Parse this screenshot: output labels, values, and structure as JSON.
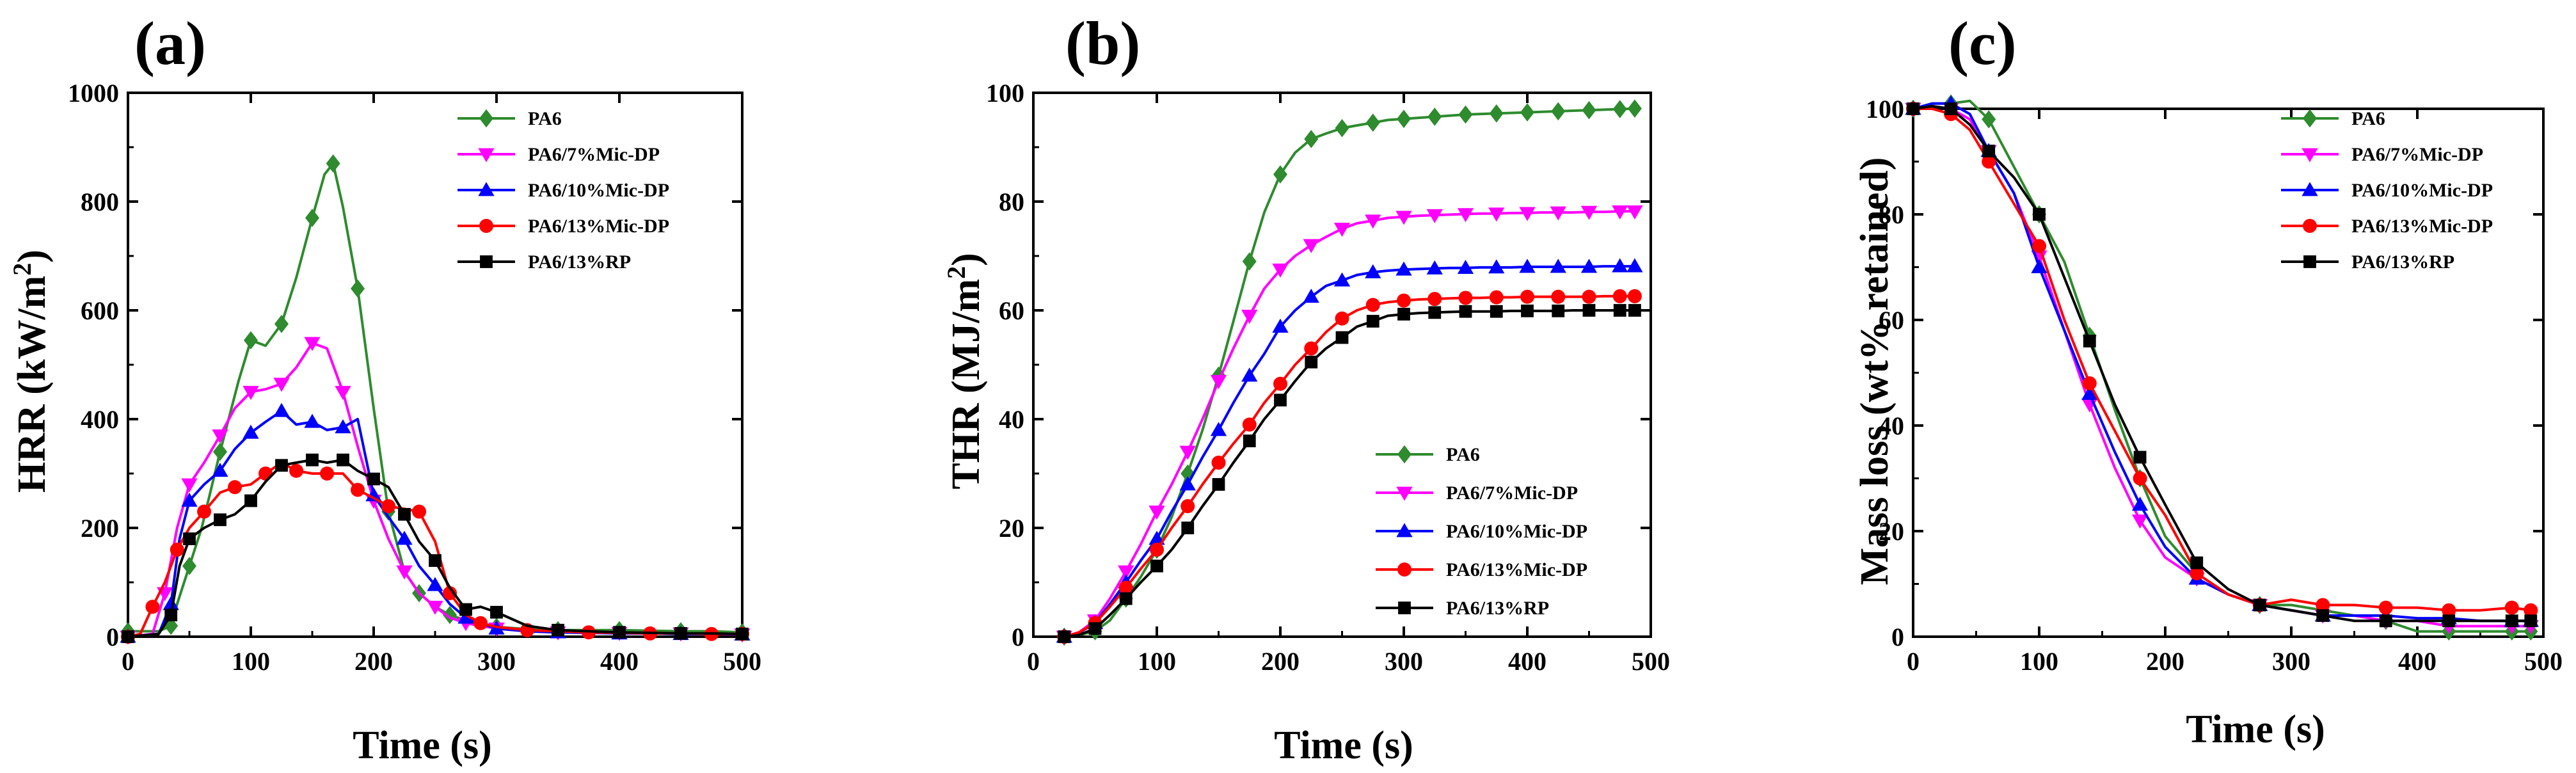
{
  "series_styles": [
    {
      "name": "PA6",
      "color": "#2e8b2e",
      "marker": "diamond"
    },
    {
      "name": "PA6/7%Mic-DP",
      "color": "#ff00ff",
      "marker": "triangle-down"
    },
    {
      "name": "PA6/10%Mic-DP",
      "color": "#0000ff",
      "marker": "triangle-up"
    },
    {
      "name": "PA6/13%Mic-DP",
      "color": "#ff0000",
      "marker": "circle"
    },
    {
      "name": "PA6/13%RP",
      "color": "#000000",
      "marker": "square"
    }
  ],
  "chart_data": [
    {
      "type": "line",
      "panel": "(a)",
      "title": "",
      "xlabel": "Time (s)",
      "ylabel": "HRR (kW/m2)",
      "ylabel_main": "HRR (kW/m",
      "ylabel_sup": "2",
      "ylabel_tail": ")",
      "xlim": [
        0,
        500
      ],
      "ylim": [
        0,
        1000
      ],
      "xticks": [
        0,
        100,
        200,
        300,
        400,
        500
      ],
      "yticks": [
        0,
        200,
        400,
        600,
        800,
        1000
      ],
      "legend": "top-right",
      "series": [
        {
          "name": "PA6",
          "x": [
            0,
            25,
            35,
            40,
            50,
            60,
            75,
            90,
            100,
            112,
            125,
            137,
            150,
            160,
            167,
            175,
            187,
            200,
            212,
            225,
            237,
            250,
            262,
            275,
            300,
            325,
            350,
            375,
            400,
            425,
            450,
            475,
            500
          ],
          "y": [
            10,
            10,
            20,
            60,
            130,
            200,
            340,
            470,
            545,
            535,
            575,
            660,
            770,
            850,
            870,
            790,
            640,
            420,
            230,
            120,
            80,
            55,
            40,
            30,
            18,
            14,
            12,
            12,
            12,
            11,
            10,
            10,
            8
          ]
        },
        {
          "name": "PA6/7%Mic-DP",
          "x": [
            0,
            20,
            30,
            40,
            50,
            62,
            75,
            87,
            100,
            112,
            125,
            137,
            150,
            162,
            175,
            187,
            200,
            212,
            225,
            237,
            250,
            262,
            275,
            287,
            300,
            325,
            350,
            375,
            400,
            425,
            450,
            475,
            500
          ],
          "y": [
            0,
            5,
            80,
            200,
            280,
            320,
            370,
            420,
            450,
            455,
            465,
            495,
            540,
            530,
            450,
            350,
            250,
            180,
            120,
            80,
            55,
            35,
            25,
            20,
            15,
            10,
            8,
            8,
            7,
            6,
            6,
            5,
            4
          ]
        },
        {
          "name": "PA6/10%Mic-DP",
          "x": [
            0,
            25,
            35,
            42,
            50,
            62,
            75,
            87,
            100,
            112,
            125,
            137,
            150,
            162,
            175,
            187,
            200,
            212,
            225,
            237,
            250,
            262,
            275,
            287,
            300,
            325,
            350,
            375,
            400,
            425,
            450,
            475,
            500
          ],
          "y": [
            0,
            5,
            60,
            180,
            250,
            280,
            305,
            345,
            375,
            395,
            415,
            390,
            395,
            380,
            385,
            400,
            260,
            220,
            180,
            130,
            95,
            60,
            35,
            25,
            15,
            10,
            8,
            7,
            6,
            6,
            5,
            5,
            4
          ]
        },
        {
          "name": "PA6/13%Mic-DP",
          "x": [
            0,
            10,
            20,
            30,
            40,
            50,
            62,
            75,
            87,
            100,
            112,
            125,
            137,
            150,
            162,
            175,
            187,
            200,
            212,
            225,
            237,
            250,
            262,
            275,
            287,
            300,
            325,
            350,
            375,
            400,
            425,
            450,
            475,
            500
          ],
          "y": [
            0,
            5,
            55,
            100,
            160,
            200,
            230,
            265,
            275,
            280,
            300,
            320,
            305,
            300,
            300,
            300,
            270,
            255,
            240,
            235,
            230,
            175,
            80,
            40,
            25,
            18,
            12,
            10,
            8,
            7,
            6,
            6,
            5,
            5
          ]
        },
        {
          "name": "PA6/13%RP",
          "x": [
            0,
            25,
            35,
            42,
            50,
            62,
            75,
            87,
            100,
            112,
            125,
            137,
            150,
            162,
            175,
            187,
            200,
            212,
            225,
            237,
            250,
            262,
            275,
            287,
            300,
            325,
            350,
            375,
            400,
            425,
            450,
            475,
            500
          ],
          "y": [
            0,
            5,
            40,
            130,
            180,
            200,
            215,
            225,
            250,
            285,
            315,
            320,
            325,
            320,
            325,
            305,
            290,
            275,
            225,
            175,
            140,
            90,
            50,
            55,
            45,
            20,
            12,
            10,
            8,
            7,
            6,
            6,
            5
          ]
        }
      ]
    },
    {
      "type": "line",
      "panel": "(b)",
      "title": "",
      "xlabel": "Time (s)",
      "ylabel": "THR (MJ/m2)",
      "ylabel_main": "THR (MJ/m",
      "ylabel_sup": "2",
      "ylabel_tail": ")",
      "xlim": [
        0,
        500
      ],
      "ylim": [
        0,
        100
      ],
      "xticks": [
        0,
        100,
        200,
        300,
        400,
        500
      ],
      "yticks": [
        0,
        20,
        40,
        60,
        80,
        100
      ],
      "legend": "bottom-right",
      "series": [
        {
          "name": "PA6",
          "x": [
            25,
            37,
            50,
            62,
            75,
            87,
            100,
            112,
            125,
            137,
            150,
            162,
            175,
            187,
            200,
            212,
            225,
            237,
            250,
            262,
            275,
            287,
            300,
            312,
            325,
            337,
            350,
            362,
            375,
            387,
            400,
            412,
            425,
            437,
            450,
            462,
            475,
            487
          ],
          "y": [
            0,
            0.3,
            1,
            3,
            7,
            11,
            16,
            22,
            30,
            38,
            48,
            58,
            69,
            78,
            85,
            89,
            91.5,
            92.5,
            93.5,
            94,
            94.5,
            95,
            95.2,
            95.4,
            95.6,
            95.8,
            96,
            96.1,
            96.2,
            96.3,
            96.4,
            96.5,
            96.6,
            96.7,
            96.8,
            96.9,
            97,
            97.1
          ]
        },
        {
          "name": "PA6/7%Mic-DP",
          "x": [
            25,
            37,
            50,
            62,
            75,
            87,
            100,
            112,
            125,
            137,
            150,
            162,
            175,
            187,
            200,
            212,
            225,
            237,
            250,
            262,
            275,
            287,
            300,
            312,
            325,
            337,
            350,
            362,
            375,
            387,
            400,
            412,
            425,
            437,
            450,
            462,
            475,
            487
          ],
          "y": [
            0,
            0.8,
            3,
            7,
            12,
            17,
            23,
            28,
            34,
            40,
            47,
            53,
            59,
            64,
            67.5,
            70,
            72,
            73.5,
            75,
            76,
            76.5,
            77,
            77.2,
            77.4,
            77.5,
            77.6,
            77.7,
            77.8,
            77.8,
            77.9,
            77.9,
            78,
            78,
            78,
            78.1,
            78.1,
            78.2,
            78.2
          ]
        },
        {
          "name": "PA6/10%Mic-DP",
          "x": [
            25,
            37,
            50,
            62,
            75,
            87,
            100,
            112,
            125,
            137,
            150,
            162,
            175,
            187,
            200,
            212,
            225,
            237,
            250,
            262,
            275,
            287,
            300,
            312,
            325,
            337,
            350,
            362,
            375,
            387,
            400,
            412,
            425,
            437,
            450,
            462,
            475,
            487
          ],
          "y": [
            0,
            0.7,
            2.5,
            6,
            10,
            14,
            18,
            23,
            28,
            33,
            38,
            43,
            48,
            52,
            57,
            60,
            62.5,
            64.5,
            65.5,
            66.5,
            67,
            67.3,
            67.5,
            67.6,
            67.7,
            67.8,
            67.8,
            67.9,
            67.9,
            67.9,
            68,
            68,
            68,
            68,
            68,
            68.1,
            68.1,
            68.1
          ]
        },
        {
          "name": "PA6/13%Mic-DP",
          "x": [
            25,
            37,
            50,
            62,
            75,
            87,
            100,
            112,
            125,
            137,
            150,
            162,
            175,
            187,
            200,
            212,
            225,
            237,
            250,
            262,
            275,
            287,
            300,
            312,
            325,
            337,
            350,
            362,
            375,
            387,
            400,
            412,
            425,
            437,
            450,
            462,
            475,
            487
          ],
          "y": [
            0,
            0.8,
            2.5,
            5.5,
            9,
            12.5,
            16,
            20,
            24,
            28,
            32,
            35.5,
            39,
            43,
            46.5,
            50,
            53,
            56,
            58.5,
            60,
            61,
            61.5,
            61.8,
            62,
            62.1,
            62.2,
            62.3,
            62.3,
            62.4,
            62.4,
            62.5,
            62.5,
            62.5,
            62.5,
            62.5,
            62.6,
            62.6,
            62.6
          ]
        },
        {
          "name": "PA6/13%RP",
          "x": [
            25,
            37,
            50,
            62,
            75,
            87,
            100,
            112,
            125,
            137,
            150,
            162,
            175,
            187,
            200,
            212,
            225,
            237,
            250,
            262,
            275,
            287,
            300,
            312,
            325,
            337,
            350,
            362,
            375,
            387,
            400,
            412,
            425,
            437,
            450,
            462,
            475,
            487
          ],
          "y": [
            0,
            0.3,
            1.5,
            4,
            7,
            10,
            13,
            16,
            20,
            24,
            28,
            32,
            36,
            40,
            43.5,
            47,
            50.5,
            53,
            55,
            57,
            58,
            59,
            59.3,
            59.5,
            59.6,
            59.7,
            59.8,
            59.8,
            59.8,
            59.9,
            59.9,
            59.9,
            59.9,
            60,
            60,
            60,
            60,
            60
          ]
        }
      ]
    },
    {
      "type": "line",
      "panel": "(c)",
      "title": "",
      "xlabel": "Time (s)",
      "ylabel": "Mass loss (wt% retained)",
      "ylabel_main": "Mass loss (wt% retained)",
      "ylabel_sup": "",
      "ylabel_tail": "",
      "xlim": [
        0,
        500
      ],
      "ylim": [
        0,
        100
      ],
      "xticks": [
        0,
        100,
        200,
        300,
        400,
        500
      ],
      "yticks": [
        0,
        20,
        40,
        60,
        80,
        100
      ],
      "legend": "top-right",
      "series": [
        {
          "name": "PA6",
          "x": [
            0,
            15,
            30,
            45,
            60,
            80,
            100,
            120,
            140,
            160,
            180,
            200,
            225,
            250,
            275,
            300,
            325,
            350,
            375,
            400,
            425,
            450,
            475,
            490
          ],
          "y": [
            100,
            101,
            101,
            101.5,
            98,
            89,
            80,
            71,
            57,
            43,
            30,
            19,
            12,
            8,
            6,
            6,
            5,
            4,
            3,
            1,
            1,
            1,
            1,
            1
          ]
        },
        {
          "name": "PA6/7%Mic-DP",
          "x": [
            0,
            15,
            30,
            45,
            60,
            80,
            100,
            120,
            140,
            160,
            180,
            200,
            225,
            250,
            275,
            300,
            325,
            350,
            375,
            400,
            425,
            450,
            475,
            490
          ],
          "y": [
            100,
            100.5,
            100,
            98,
            92,
            84,
            72,
            58,
            44,
            32,
            22,
            15,
            11,
            8,
            6,
            5,
            4,
            4,
            3,
            3,
            2,
            2,
            2,
            2
          ]
        },
        {
          "name": "PA6/10%Mic-DP",
          "x": [
            0,
            15,
            30,
            45,
            60,
            80,
            100,
            120,
            140,
            160,
            180,
            200,
            225,
            250,
            275,
            300,
            325,
            350,
            375,
            400,
            425,
            450,
            475,
            490
          ],
          "y": [
            100,
            101,
            101,
            99,
            92,
            84,
            70,
            58,
            46,
            35,
            25,
            17,
            11,
            8,
            6,
            5,
            4,
            4,
            4,
            3.5,
            3.5,
            3,
            3,
            3
          ]
        },
        {
          "name": "PA6/13%Mic-DP",
          "x": [
            0,
            15,
            30,
            45,
            60,
            80,
            100,
            120,
            140,
            160,
            180,
            200,
            225,
            250,
            275,
            300,
            325,
            350,
            375,
            400,
            425,
            450,
            475,
            490
          ],
          "y": [
            100,
            100,
            99,
            96,
            90,
            82,
            74,
            60,
            48,
            39,
            30,
            23,
            12,
            8,
            6,
            7,
            6,
            6,
            5.5,
            5.5,
            5,
            5,
            5.5,
            5
          ]
        },
        {
          "name": "PA6/13%RP",
          "x": [
            0,
            15,
            30,
            45,
            60,
            80,
            100,
            120,
            140,
            160,
            180,
            200,
            225,
            250,
            275,
            300,
            325,
            350,
            375,
            400,
            425,
            450,
            475,
            490
          ],
          "y": [
            100,
            100.5,
            100,
            97,
            92,
            87,
            80,
            68,
            56,
            44,
            34,
            25,
            14,
            9,
            6,
            5,
            4,
            3,
            3,
            3,
            3,
            3,
            3,
            3
          ]
        }
      ]
    }
  ]
}
